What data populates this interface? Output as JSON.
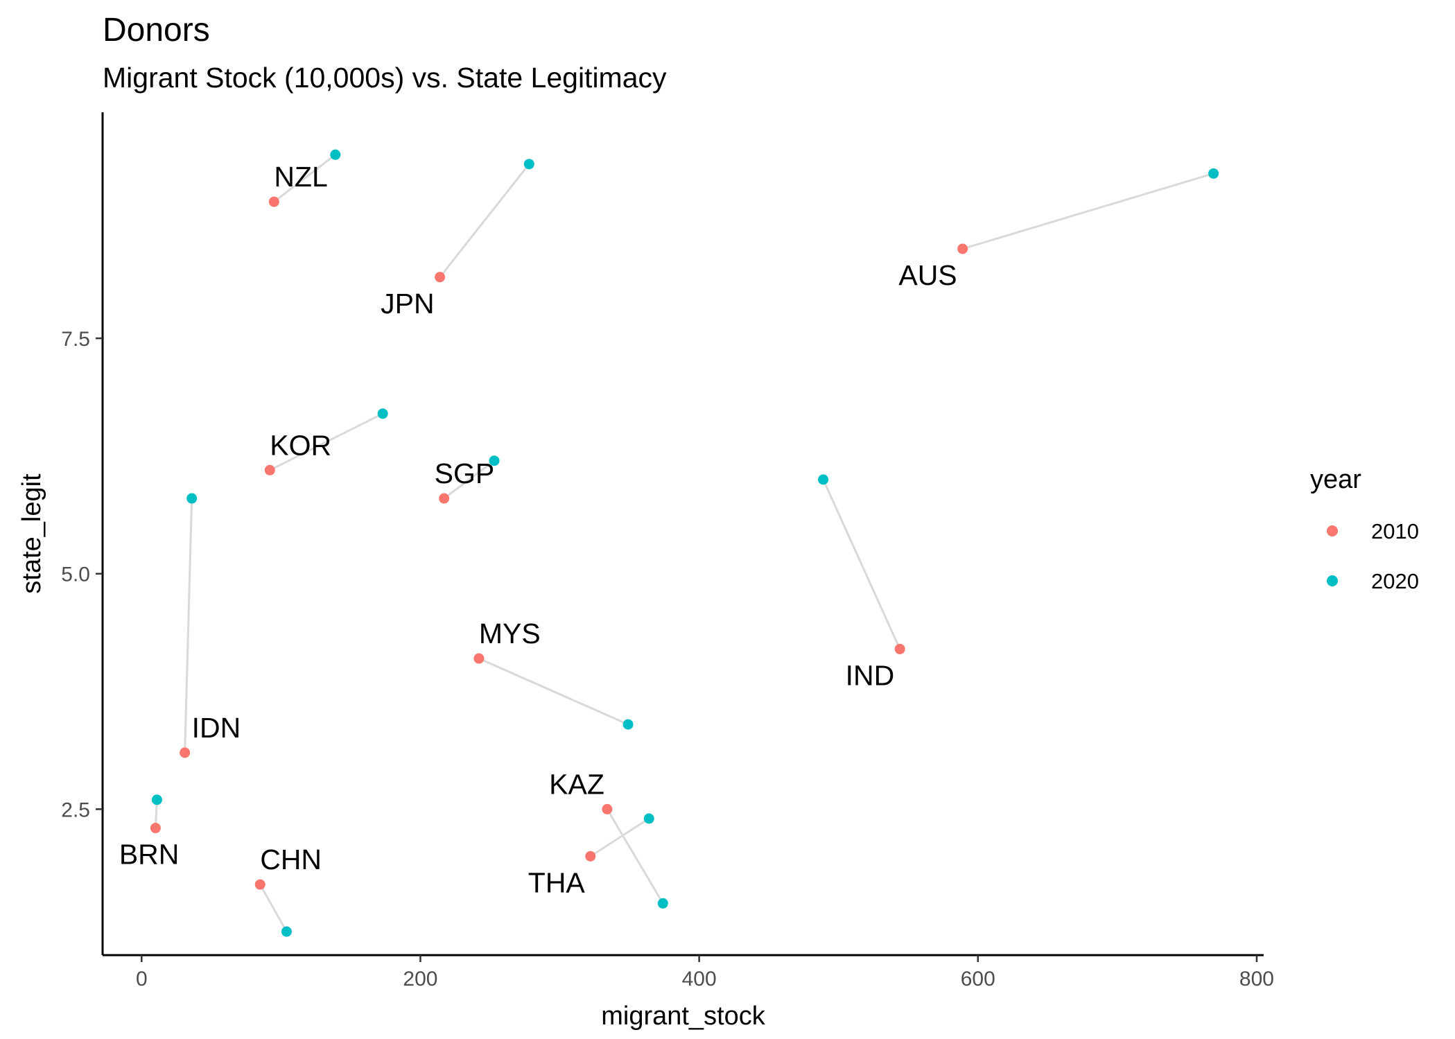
{
  "chart_data": {
    "type": "scatter",
    "title": "Donors",
    "subtitle": "Migrant Stock (10,000s) vs. State Legitimacy",
    "xlabel": "migrant_stock",
    "ylabel": "state_legit",
    "xlim": [
      -28,
      805
    ],
    "ylim": [
      0.95,
      9.9
    ],
    "xticks": [
      0,
      200,
      400,
      600,
      800
    ],
    "yticks": [
      2.5,
      5.0,
      7.5
    ],
    "xtick_labels": [
      "0",
      "200",
      "400",
      "600",
      "800"
    ],
    "ytick_labels": [
      "2.5",
      "5.0",
      "7.5"
    ],
    "grid": false,
    "legend": {
      "title": "year",
      "position": "right"
    },
    "series": [
      {
        "name": "2010",
        "color": "#F8766D"
      },
      {
        "name": "2020",
        "color": "#00BFC4"
      }
    ],
    "connector_color": "#d9d9d9",
    "countries": [
      {
        "label": "NZL",
        "p2010": [
          95,
          8.95
        ],
        "p2020": [
          139,
          9.45
        ]
      },
      {
        "label": "JPN",
        "p2010": [
          214,
          8.15
        ],
        "p2020": [
          278,
          9.35
        ]
      },
      {
        "label": "AUS",
        "p2010": [
          589,
          8.45
        ],
        "p2020": [
          769,
          9.25
        ]
      },
      {
        "label": "KOR",
        "p2010": [
          92,
          6.1
        ],
        "p2020": [
          173,
          6.7
        ]
      },
      {
        "label": "SGP",
        "p2010": [
          217,
          5.8
        ],
        "p2020": [
          253,
          6.2
        ]
      },
      {
        "label": "IDN",
        "p2010": [
          31,
          3.1
        ],
        "p2020": [
          36,
          5.8
        ]
      },
      {
        "label": "IND",
        "p2010": [
          544,
          4.2
        ],
        "p2020": [
          489,
          6.0
        ]
      },
      {
        "label": "MYS",
        "p2010": [
          242,
          4.1
        ],
        "p2020": [
          349,
          3.4
        ]
      },
      {
        "label": "BRN",
        "p2010": [
          10,
          2.3
        ],
        "p2020": [
          11,
          2.6
        ]
      },
      {
        "label": "CHN",
        "p2010": [
          85,
          1.7
        ],
        "p2020": [
          104,
          1.2
        ]
      },
      {
        "label": "KAZ",
        "p2010": [
          334,
          2.5
        ],
        "p2020": [
          374,
          1.5
        ]
      },
      {
        "label": "THA",
        "p2010": [
          322,
          2.0
        ],
        "p2020": [
          364,
          2.4
        ]
      }
    ]
  }
}
